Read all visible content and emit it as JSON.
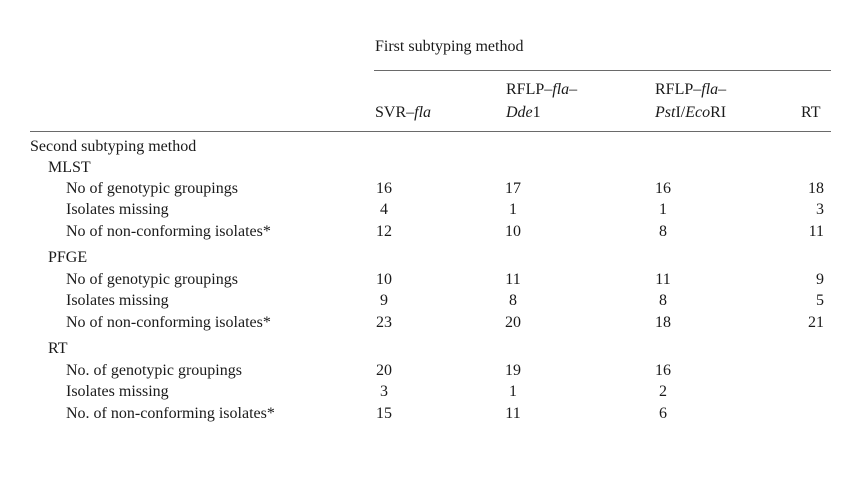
{
  "header": {
    "group_title": "First subtyping method",
    "columns": [
      {
        "line1": "",
        "line2a": "SVR–",
        "line2b": "fla",
        "line2c": ""
      },
      {
        "line1a": "RFLP–",
        "line1b": "fla",
        "line1c": "–",
        "line2a": "Dde",
        "line2b": "1"
      },
      {
        "line1a": "RFLP–",
        "line1b": "fla",
        "line1c": "–",
        "line2a": "Pst",
        "line2b": "I/",
        "line2c": "Eco",
        "line2d": "RI"
      },
      {
        "line2": "RT"
      }
    ]
  },
  "stub_title": "Second subtyping method",
  "sections": [
    {
      "name": "MLST",
      "rows": [
        {
          "label": "No of genotypic groupings",
          "values": [
            "16",
            "17",
            "16",
            "18"
          ]
        },
        {
          "label": "Isolates missing",
          "values": [
            "4",
            "1",
            "1",
            "3"
          ]
        },
        {
          "label": "No of non-conforming isolates*",
          "values": [
            "12",
            "10",
            "8",
            "11"
          ]
        }
      ]
    },
    {
      "name": "PFGE",
      "rows": [
        {
          "label": "No of genotypic groupings",
          "values": [
            "10",
            "11",
            "11",
            "9"
          ]
        },
        {
          "label": "Isolates missing",
          "values": [
            "9",
            "8",
            "8",
            "5"
          ]
        },
        {
          "label": "No of non-conforming isolates*",
          "values": [
            "23",
            "20",
            "18",
            "21"
          ]
        }
      ]
    },
    {
      "name": "RT",
      "rows": [
        {
          "label": "No. of genotypic groupings",
          "values": [
            "20",
            "19",
            "16",
            ""
          ]
        },
        {
          "label": "Isolates missing",
          "values": [
            "3",
            "1",
            "2",
            ""
          ]
        },
        {
          "label": "No. of non-conforming isolates*",
          "values": [
            "15",
            "11",
            "6",
            ""
          ]
        }
      ]
    }
  ]
}
